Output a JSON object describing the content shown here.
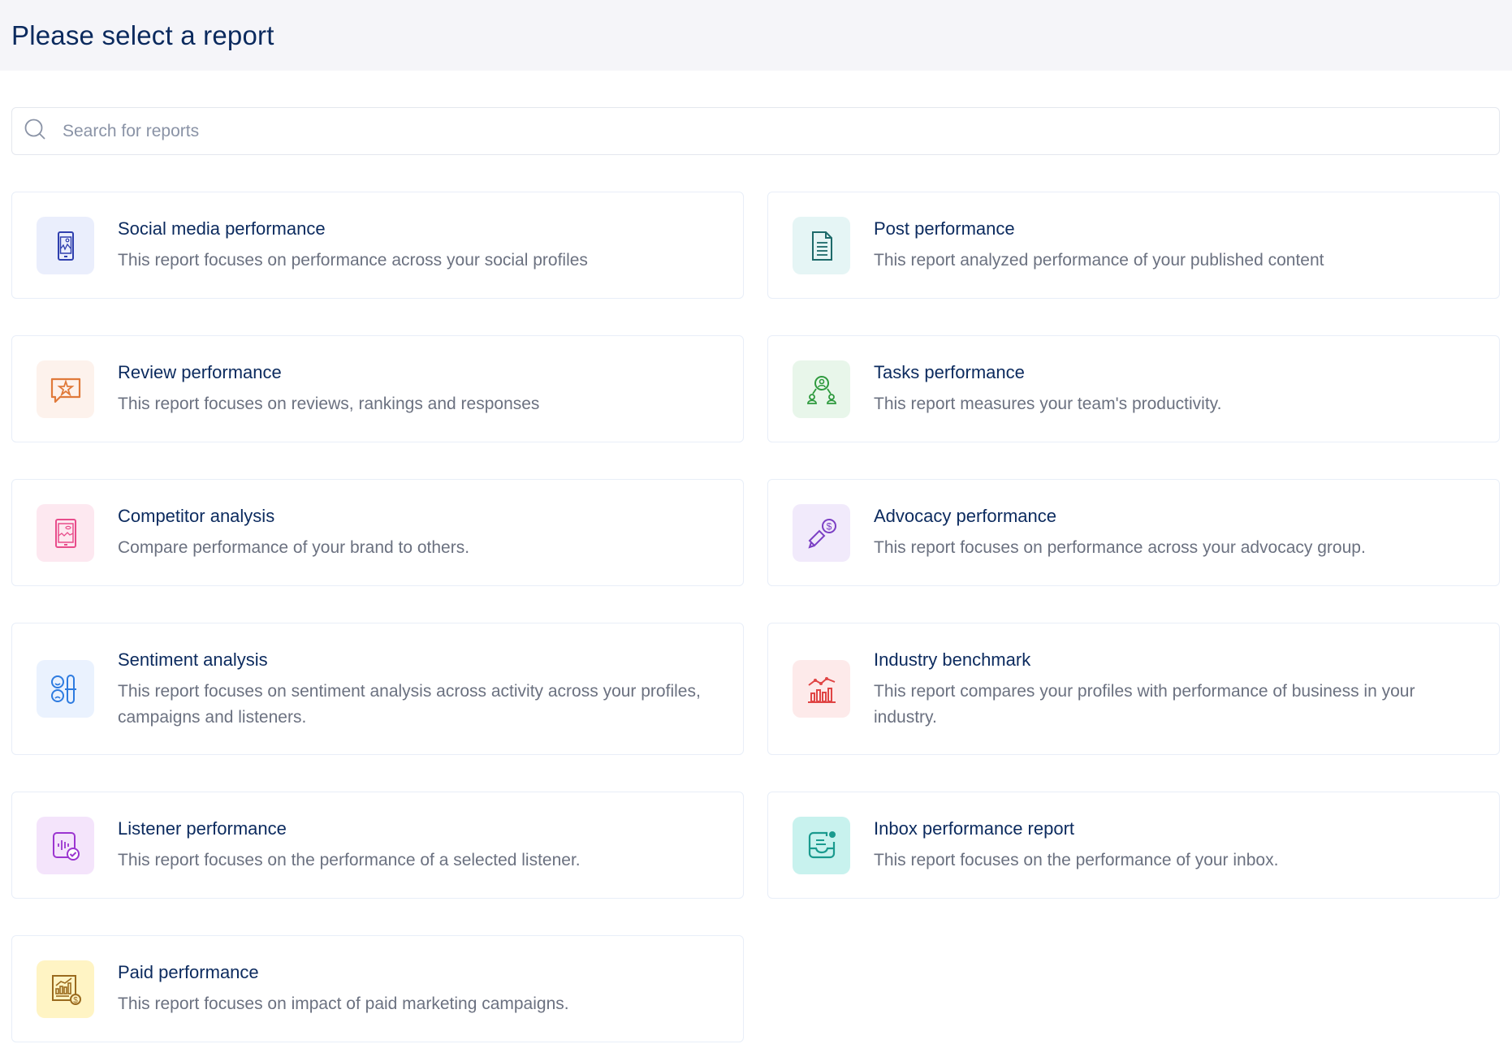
{
  "header": {
    "title": "Please select a report"
  },
  "search": {
    "placeholder": "Search for reports",
    "icon": "search-icon"
  },
  "reports": [
    {
      "title": "Social media performance",
      "description": "This report focuses on performance across your social profiles",
      "icon": "mobile-chart-icon",
      "icon_color": "#2f3fae",
      "icon_bg": "#eaeefc"
    },
    {
      "title": "Post performance",
      "description": "This report analyzed performance of your published content",
      "icon": "document-icon",
      "icon_color": "#1d6a6a",
      "icon_bg": "#e5f5f5"
    },
    {
      "title": "Review performance",
      "description": "This report focuses on reviews, rankings and responses",
      "icon": "star-speech-bubble-icon",
      "icon_color": "#e07a3a",
      "icon_bg": "#fdf2ec"
    },
    {
      "title": "Tasks performance",
      "description": "This report measures your team's productivity.",
      "icon": "team-icon",
      "icon_color": "#2e9a3e",
      "icon_bg": "#e8f6ea"
    },
    {
      "title": "Competitor analysis",
      "description": "Compare performance of your brand to others.",
      "icon": "tablet-chart-icon",
      "icon_color": "#e84c8b",
      "icon_bg": "#fde8f0"
    },
    {
      "title": "Advocacy performance",
      "description": "This report focuses on performance across your advocacy group.",
      "icon": "megaphone-dollar-icon",
      "icon_color": "#7b3fc4",
      "icon_bg": "#f1eafb"
    },
    {
      "title": "Sentiment analysis",
      "description": "This report focuses on sentiment analysis across activity across your profiles, campaigns and listeners.",
      "icon": "sentiment-icon",
      "icon_color": "#2d7be0",
      "icon_bg": "#eaf2fe"
    },
    {
      "title": "Industry benchmark",
      "description": "This report compares your profiles with performance of business in your industry.",
      "icon": "benchmark-chart-icon",
      "icon_color": "#e04545",
      "icon_bg": "#fdeaea"
    },
    {
      "title": "Listener performance",
      "description": "This report focuses on the performance of a selected listener.",
      "icon": "audio-check-icon",
      "icon_color": "#9b35d0",
      "icon_bg": "#f4e4fb"
    },
    {
      "title": "Inbox performance report",
      "description": "This report focuses on the performance of your inbox.",
      "icon": "inbox-icon",
      "icon_color": "#1a9a8e",
      "icon_bg": "#c8f2ee"
    },
    {
      "title": "Paid performance",
      "description": "This report focuses on impact of paid marketing campaigns.",
      "icon": "paid-chart-icon",
      "icon_color": "#9a6a1e",
      "icon_bg": "#fff4c4"
    }
  ]
}
